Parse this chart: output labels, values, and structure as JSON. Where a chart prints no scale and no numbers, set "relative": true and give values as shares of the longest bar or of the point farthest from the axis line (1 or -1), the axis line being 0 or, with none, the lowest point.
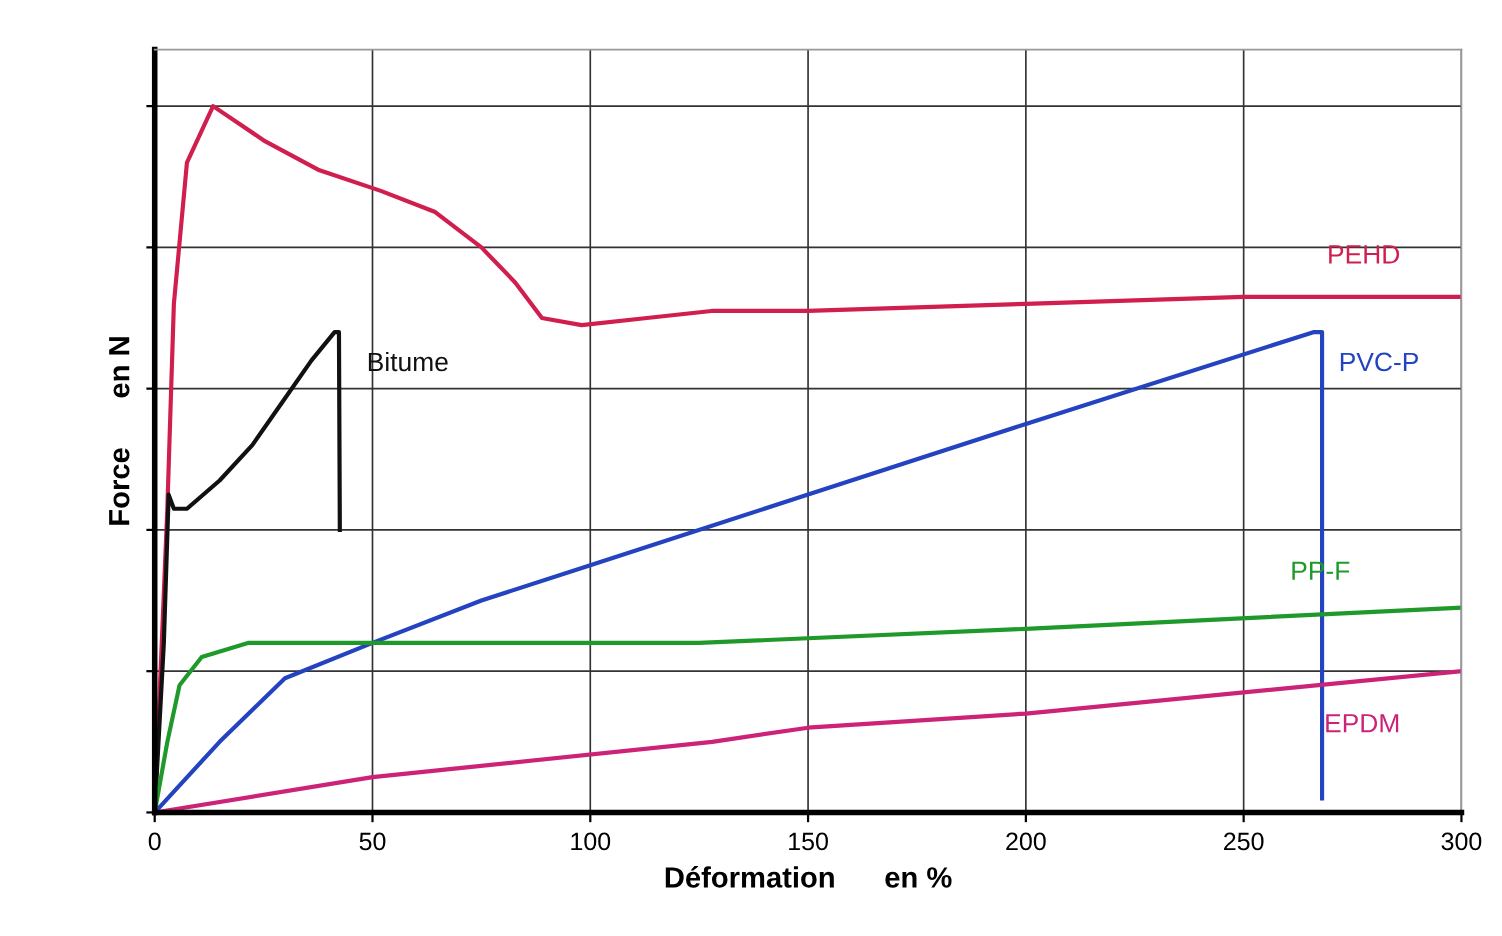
{
  "chart_data": {
    "type": "line",
    "relative": true,
    "xlabel": "Déformation      en %",
    "ylabel": "Force      en N",
    "xlim": [
      0,
      300
    ],
    "xticks": [
      0,
      50,
      100,
      150,
      200,
      250,
      300
    ],
    "grid": true,
    "legend": false,
    "marker": "none",
    "line_style": "solid",
    "series": [
      {
        "name": "PEHD",
        "color": "#d01e4e",
        "x": [
          0,
          2.9,
          4.4,
          7.4,
          13.4,
          25.4,
          37.5,
          51.9,
          64.4,
          75,
          82.8,
          88.9,
          98,
          113,
          127.8,
          150,
          200,
          250,
          300
        ],
        "values": [
          0,
          0.43,
          0.72,
          0.92,
          1,
          0.95,
          0.91,
          0.88,
          0.85,
          0.8,
          0.75,
          0.7,
          0.69,
          0.7,
          0.71,
          0.71,
          0.72,
          0.73,
          0.73
        ]
      },
      {
        "name": "Bitume",
        "color": "#111111",
        "x": [
          0,
          2.1,
          3.2,
          4.4,
          7.4,
          14.9,
          22.4,
          29.2,
          36,
          41.3,
          42.3,
          42.5
        ],
        "values": [
          0,
          0.24,
          0.45,
          0.43,
          0.43,
          0.47,
          0.52,
          0.58,
          0.64,
          0.68,
          0.68,
          0.4
        ]
      },
      {
        "name": "PVC-P",
        "color": "#2343c0",
        "x": [
          0,
          14.9,
          29.9,
          50,
          75,
          100,
          150,
          200,
          266,
          268,
          268
        ],
        "values": [
          0,
          0.1,
          0.19,
          0.24,
          0.3,
          0.35,
          0.45,
          0.55,
          0.68,
          0.68,
          0.02
        ]
      },
      {
        "name": "PP-F",
        "color": "#1f9a2a",
        "x": [
          0,
          2.9,
          5.7,
          10.8,
          21.4,
          50,
          100,
          125,
          200,
          300
        ],
        "values": [
          0,
          0.1,
          0.18,
          0.22,
          0.24,
          0.24,
          0.24,
          0.24,
          0.26,
          0.29
        ]
      },
      {
        "name": "EPDM",
        "color": "#cc2277",
        "x": [
          0,
          50,
          128,
          150,
          200,
          300
        ],
        "values": [
          0,
          0.05,
          0.1,
          0.12,
          0.14,
          0.2
        ]
      }
    ]
  }
}
